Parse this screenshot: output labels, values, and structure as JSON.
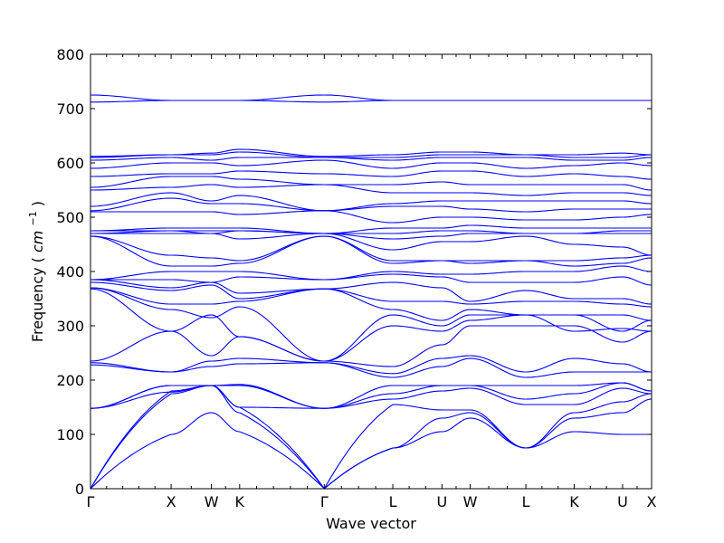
{
  "chart_data": {
    "type": "line",
    "title": "",
    "xlabel": "Wave vector",
    "ylabel": "Frequency",
    "ylabel_unit_math": {
      "base": "cm",
      "exp": "−1"
    },
    "ylim": [
      0,
      800
    ],
    "yticks": [
      0,
      100,
      200,
      300,
      400,
      500,
      600,
      700,
      800
    ],
    "grid": false,
    "legend": "none",
    "line_color": "#0000ff",
    "high_symmetry_points": [
      {
        "label": "Γ",
        "x": 0.0
      },
      {
        "label": "X",
        "x": 1.0
      },
      {
        "label": "W",
        "x": 1.5
      },
      {
        "label": "K",
        "x": 1.85
      },
      {
        "label": "Γ",
        "x": 2.9
      },
      {
        "label": "L",
        "x": 3.75
      },
      {
        "label": "U",
        "x": 4.36
      },
      {
        "label": "W",
        "x": 4.71
      },
      {
        "label": "L",
        "x": 5.4
      },
      {
        "label": "K",
        "x": 6.0
      },
      {
        "label": "U",
        "x": 6.6
      },
      {
        "label": "X",
        "x": 6.96
      }
    ],
    "xlim": [
      0,
      6.96
    ],
    "branches": [
      [
        0,
        100,
        140,
        105,
        0,
        75,
        105,
        130,
        75,
        105,
        100,
        100
      ],
      [
        0,
        175,
        190,
        140,
        0,
        75,
        130,
        140,
        75,
        130,
        140,
        165
      ],
      [
        0,
        180,
        190,
        150,
        0,
        155,
        145,
        145,
        75,
        140,
        160,
        175
      ],
      [
        148,
        178,
        190,
        150,
        148,
        165,
        180,
        185,
        155,
        155,
        185,
        175
      ],
      [
        148,
        190,
        190,
        190,
        148,
        190,
        190,
        190,
        165,
        175,
        195,
        180
      ],
      [
        148,
        190,
        190,
        192,
        148,
        175,
        190,
        190,
        190,
        190,
        195,
        180
      ],
      [
        228,
        215,
        225,
        230,
        232,
        205,
        225,
        240,
        205,
        215,
        215,
        215
      ],
      [
        232,
        215,
        235,
        240,
        232,
        212,
        240,
        245,
        215,
        240,
        230,
        215
      ],
      [
        235,
        290,
        245,
        280,
        235,
        225,
        265,
        300,
        300,
        300,
        270,
        290
      ],
      [
        368,
        290,
        320,
        280,
        235,
        300,
        290,
        310,
        320,
        290,
        295,
        290
      ],
      [
        370,
        330,
        315,
        335,
        235,
        320,
        300,
        320,
        320,
        320,
        290,
        310
      ],
      [
        370,
        340,
        340,
        345,
        368,
        330,
        310,
        330,
        320,
        320,
        320,
        310
      ],
      [
        380,
        365,
        375,
        350,
        368,
        345,
        345,
        340,
        345,
        345,
        340,
        335
      ],
      [
        385,
        370,
        380,
        360,
        368,
        380,
        370,
        345,
        365,
        350,
        350,
        340
      ],
      [
        385,
        385,
        380,
        390,
        385,
        395,
        390,
        380,
        380,
        380,
        390,
        375
      ],
      [
        385,
        400,
        400,
        400,
        385,
        400,
        395,
        395,
        400,
        400,
        410,
        400
      ],
      [
        465,
        410,
        410,
        415,
        465,
        415,
        420,
        415,
        420,
        410,
        415,
        425
      ],
      [
        465,
        430,
        425,
        420,
        465,
        420,
        420,
        420,
        420,
        420,
        425,
        430
      ],
      [
        470,
        470,
        470,
        460,
        470,
        440,
        455,
        455,
        465,
        450,
        445,
        430
      ],
      [
        470,
        475,
        470,
        475,
        470,
        460,
        465,
        470,
        470,
        470,
        470,
        470
      ],
      [
        475,
        475,
        475,
        475,
        470,
        470,
        475,
        475,
        470,
        470,
        475,
        475
      ],
      [
        475,
        480,
        480,
        480,
        470,
        480,
        480,
        485,
        480,
        480,
        480,
        480
      ],
      [
        510,
        510,
        510,
        505,
        512,
        490,
        500,
        500,
        495,
        495,
        500,
        505
      ],
      [
        512,
        535,
        525,
        525,
        512,
        520,
        520,
        515,
        510,
        515,
        515,
        515
      ],
      [
        520,
        545,
        530,
        540,
        512,
        525,
        530,
        530,
        530,
        530,
        530,
        525
      ],
      [
        550,
        555,
        560,
        555,
        560,
        545,
        545,
        545,
        540,
        545,
        545,
        540
      ],
      [
        555,
        575,
        575,
        570,
        560,
        560,
        565,
        560,
        560,
        560,
        560,
        550
      ],
      [
        575,
        580,
        580,
        585,
        580,
        575,
        585,
        585,
        575,
        580,
        575,
        570
      ],
      [
        590,
        600,
        600,
        595,
        605,
        590,
        600,
        600,
        590,
        595,
        600,
        595
      ],
      [
        605,
        610,
        605,
        610,
        610,
        605,
        610,
        610,
        610,
        605,
        605,
        610
      ],
      [
        610,
        615,
        615,
        620,
        610,
        610,
        615,
        615,
        615,
        610,
        610,
        615
      ],
      [
        612,
        615,
        618,
        625,
        612,
        615,
        620,
        620,
        615,
        615,
        618,
        615
      ],
      [
        712,
        715,
        715,
        715,
        712,
        715,
        715,
        715,
        715,
        715,
        715,
        715
      ],
      [
        725,
        715,
        715,
        715,
        725,
        715,
        715,
        715,
        715,
        715,
        715,
        715
      ]
    ]
  }
}
